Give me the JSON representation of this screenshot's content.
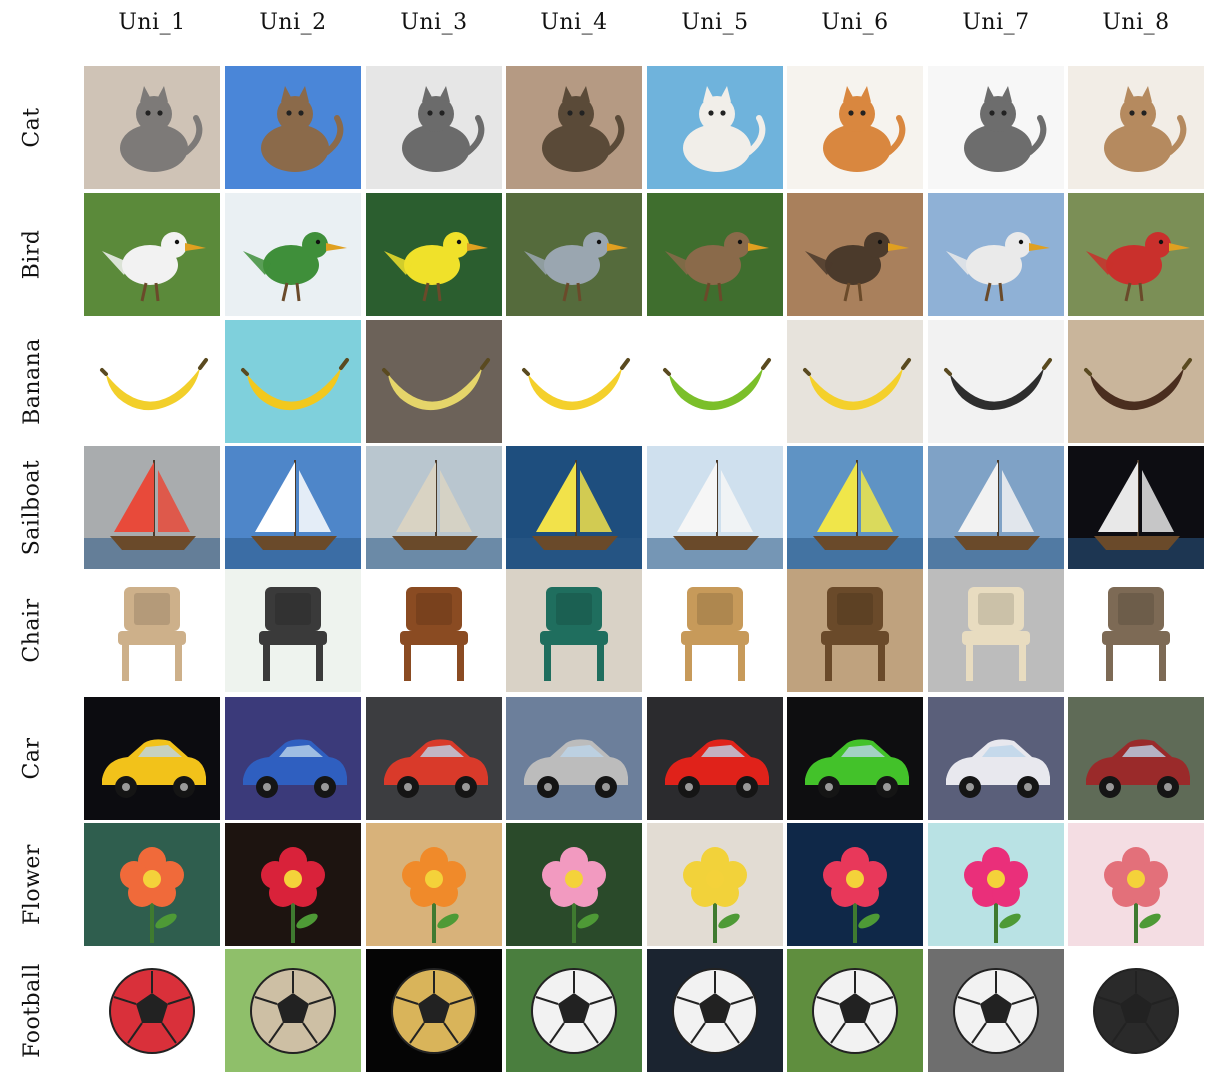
{
  "columns": [
    "Uni_1",
    "Uni_2",
    "Uni_3",
    "Uni_4",
    "Uni_5",
    "Uni_6",
    "Uni_7",
    "Uni_8"
  ],
  "rows": [
    {
      "label": "Cat",
      "cells": [
        {
          "icon": "cat-photo",
          "bg": "#cfc3b6",
          "fg": "#7d7a78"
        },
        {
          "icon": "cat-photo",
          "bg": "#4a86d8",
          "fg": "#8b6a4a"
        },
        {
          "icon": "cat-photo",
          "bg": "#e6e6e6",
          "fg": "#6b6b6b"
        },
        {
          "icon": "cat-photo",
          "bg": "#b59a83",
          "fg": "#5a4a38"
        },
        {
          "icon": "cat-photo",
          "bg": "#6fb3dc",
          "fg": "#f1eee9"
        },
        {
          "icon": "cat-photo",
          "bg": "#f6f3ee",
          "fg": "#d9873f"
        },
        {
          "icon": "cat-photo",
          "bg": "#f7f7f7",
          "fg": "#6d6d6d"
        },
        {
          "icon": "cat-photo",
          "bg": "#f2ede6",
          "fg": "#b58a5f"
        }
      ]
    },
    {
      "label": "Bird",
      "cells": [
        {
          "icon": "bird-photo",
          "bg": "#5b8a3a",
          "fg": "#f2f2f2"
        },
        {
          "icon": "bird-photo",
          "bg": "#eaf0f3",
          "fg": "#3f8f3a"
        },
        {
          "icon": "bird-photo",
          "bg": "#2b5e2f",
          "fg": "#f0e12a"
        },
        {
          "icon": "bird-photo",
          "bg": "#556b3c",
          "fg": "#9aa6b0"
        },
        {
          "icon": "bird-photo",
          "bg": "#3f6e2e",
          "fg": "#8a6a4a"
        },
        {
          "icon": "bird-photo",
          "bg": "#a9805c",
          "fg": "#4b3a2b"
        },
        {
          "icon": "bird-photo",
          "bg": "#8fb1d6",
          "fg": "#eaeaea"
        },
        {
          "icon": "bird-photo",
          "bg": "#7b8f56",
          "fg": "#c9302c"
        }
      ]
    },
    {
      "label": "Banana",
      "cells": [
        {
          "icon": "banana-photo",
          "bg": "#ffffff",
          "fg": "#f2cf2a"
        },
        {
          "icon": "banana-photo",
          "bg": "#7fd0dc",
          "fg": "#f2c81e"
        },
        {
          "icon": "banana-photo",
          "bg": "#6c6259",
          "fg": "#e5d56a"
        },
        {
          "icon": "banana-photo",
          "bg": "#ffffff",
          "fg": "#f4d02b"
        },
        {
          "icon": "banana-photo",
          "bg": "#ffffff",
          "fg": "#7bbf2a"
        },
        {
          "icon": "banana-photo",
          "bg": "#e7e3dc",
          "fg": "#f4d02b"
        },
        {
          "icon": "banana-photo",
          "bg": "#f2f2f2",
          "fg": "#2e2e2e"
        },
        {
          "icon": "banana-photo",
          "bg": "#c9b59b",
          "fg": "#4a2e1f"
        }
      ]
    },
    {
      "label": "Sailboat",
      "cells": [
        {
          "icon": "sailboat-photo",
          "bg": "#a9acae",
          "fg": "#e84a3a"
        },
        {
          "icon": "sailboat-photo",
          "bg": "#4e86c9",
          "fg": "#ffffff"
        },
        {
          "icon": "sailboat-photo",
          "bg": "#b9c6cf",
          "fg": "#d9d3c3"
        },
        {
          "icon": "sailboat-photo",
          "bg": "#1e4e7e",
          "fg": "#f2e24a"
        },
        {
          "icon": "sailboat-photo",
          "bg": "#cfe0ee",
          "fg": "#f6f6f6"
        },
        {
          "icon": "sailboat-photo",
          "bg": "#5f93c4",
          "fg": "#f0e64a"
        },
        {
          "icon": "sailboat-photo",
          "bg": "#7fa2c6",
          "fg": "#f2f2f2"
        },
        {
          "icon": "sailboat-photo",
          "bg": "#0d0d12",
          "fg": "#e8e8e8"
        }
      ]
    },
    {
      "label": "Chair",
      "cells": [
        {
          "icon": "chair-photo",
          "bg": "#ffffff",
          "fg": "#cdb08a"
        },
        {
          "icon": "chair-photo",
          "bg": "#eef3ee",
          "fg": "#3a3a3a"
        },
        {
          "icon": "chair-photo",
          "bg": "#ffffff",
          "fg": "#8a4b22"
        },
        {
          "icon": "chair-photo",
          "bg": "#d9d2c6",
          "fg": "#1f6e5e"
        },
        {
          "icon": "chair-photo",
          "bg": "#ffffff",
          "fg": "#c79a5a"
        },
        {
          "icon": "chair-photo",
          "bg": "#bfa27e",
          "fg": "#6a4a2a"
        },
        {
          "icon": "chair-photo",
          "bg": "#bcbcbc",
          "fg": "#e8dcc0"
        },
        {
          "icon": "chair-photo",
          "bg": "#ffffff",
          "fg": "#7d6a55"
        }
      ]
    },
    {
      "label": "Car",
      "cells": [
        {
          "icon": "car-photo",
          "bg": "#0c0c10",
          "fg": "#f2c21a"
        },
        {
          "icon": "car-photo",
          "bg": "#3b3a7a",
          "fg": "#2f5fc0"
        },
        {
          "icon": "car-photo",
          "bg": "#3c3d40",
          "fg": "#d93a2a"
        },
        {
          "icon": "car-photo",
          "bg": "#6c7f9b",
          "fg": "#bcbcbc"
        },
        {
          "icon": "car-photo",
          "bg": "#2b2b2e",
          "fg": "#e0221a"
        },
        {
          "icon": "car-photo",
          "bg": "#0e0e10",
          "fg": "#43c22a"
        },
        {
          "icon": "car-photo",
          "bg": "#5a5f7a",
          "fg": "#e8e8ee"
        },
        {
          "icon": "car-photo",
          "bg": "#5f6b57",
          "fg": "#9a2a2a"
        }
      ]
    },
    {
      "label": "Flower",
      "cells": [
        {
          "icon": "flower-photo",
          "bg": "#2f5e4e",
          "fg": "#f06a3a"
        },
        {
          "icon": "flower-photo",
          "bg": "#1d1410",
          "fg": "#d9223a"
        },
        {
          "icon": "flower-photo",
          "bg": "#d8b27a",
          "fg": "#f08a2a"
        },
        {
          "icon": "flower-photo",
          "bg": "#2a4a2a",
          "fg": "#f29ac0"
        },
        {
          "icon": "flower-photo",
          "bg": "#e2dcd3",
          "fg": "#f2d23a"
        },
        {
          "icon": "flower-photo",
          "bg": "#0f2848",
          "fg": "#e8385a"
        },
        {
          "icon": "flower-photo",
          "bg": "#b9e2e4",
          "fg": "#ea2f7a"
        },
        {
          "icon": "flower-photo",
          "bg": "#f4dde3",
          "fg": "#e3707a"
        }
      ]
    },
    {
      "label": "Football",
      "cells": [
        {
          "icon": "football-photo",
          "bg": "#ffffff",
          "fg": "#d9303a"
        },
        {
          "icon": "football-photo",
          "bg": "#8fbf6a",
          "fg": "#cdbfa4"
        },
        {
          "icon": "football-photo",
          "bg": "#050505",
          "fg": "#d9b45a"
        },
        {
          "icon": "football-photo",
          "bg": "#4a7e3e",
          "fg": "#f2f2f2"
        },
        {
          "icon": "football-photo",
          "bg": "#1b2430",
          "fg": "#f2f2f2"
        },
        {
          "icon": "football-photo",
          "bg": "#5f8e3e",
          "fg": "#f2f2f2"
        },
        {
          "icon": "football-photo",
          "bg": "#6e6e6e",
          "fg": "#f2f2f2"
        },
        {
          "icon": "football-photo",
          "bg": "#ffffff",
          "fg": "#2a2a2a"
        }
      ]
    }
  ]
}
